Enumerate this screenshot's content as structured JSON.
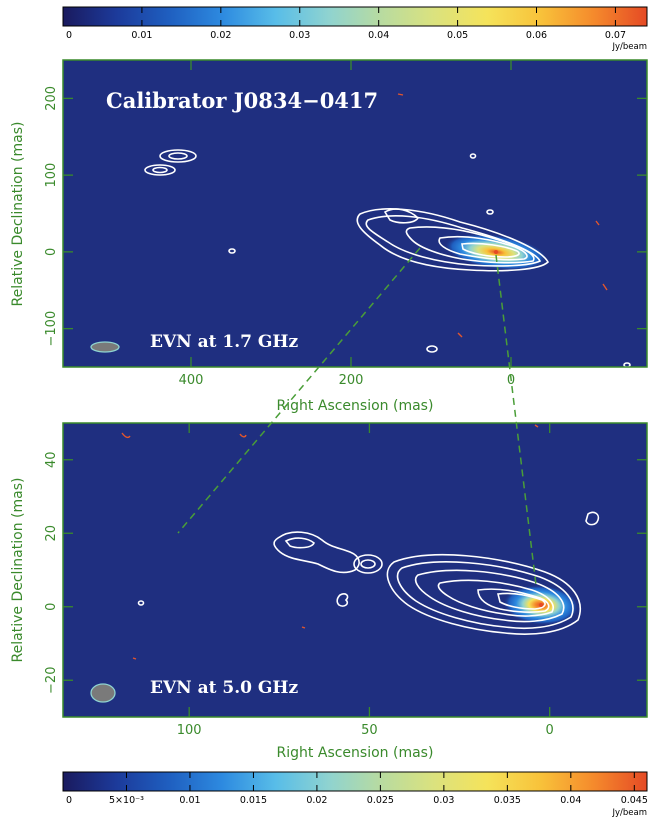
{
  "chart_data": [
    {
      "type": "heatmap",
      "title": "Calibrator J0834−0417",
      "annotation": "EVN at 1.7 GHz",
      "xlabel": "Right Ascension  (mas)",
      "ylabel": "Relative Declination  (mas)",
      "xlim": [
        560,
        -170
      ],
      "ylim": [
        -150,
        250
      ],
      "xticks": [
        "400",
        "200",
        "0"
      ],
      "xtick_values": [
        400,
        200,
        0
      ],
      "yticks": [
        "200",
        "100",
        "0",
        "−100"
      ],
      "ytick_values": [
        200,
        100,
        0,
        -100
      ],
      "peak": {
        "x": 0,
        "y": 0,
        "flux": 0.073
      },
      "beam": {
        "x": 515,
        "y": -125,
        "major_mas": 42,
        "minor_mas": 14
      },
      "colorbar": {
        "ticks": [
          "0",
          "0.01",
          "0.02",
          "0.03",
          "0.04",
          "0.05",
          "0.06",
          "0.07"
        ],
        "values": [
          0,
          0.01,
          0.02,
          0.03,
          0.04,
          0.05,
          0.06,
          0.07
        ],
        "range": [
          0,
          0.074
        ],
        "unit": "Jy/beam"
      }
    },
    {
      "type": "heatmap",
      "annotation": "EVN at 5.0 GHz",
      "xlabel": "Right Ascension  (mas)",
      "ylabel": "Relative Declination  (mas)",
      "xlim": [
        135,
        -27
      ],
      "ylim": [
        -30,
        50
      ],
      "xticks": [
        "100",
        "50",
        "0"
      ],
      "xtick_values": [
        100,
        50,
        0
      ],
      "yticks": [
        "40",
        "20",
        "0",
        "−20"
      ],
      "ytick_values": [
        40,
        20,
        0,
        -20
      ],
      "peak": {
        "x": 0,
        "y": 0,
        "flux": 0.046
      },
      "beam": {
        "x": 122,
        "y": -23,
        "major_mas": 6,
        "minor_mas": 4.5
      },
      "colorbar": {
        "ticks": [
          "0",
          "5×10⁻³",
          "0.01",
          "0.015",
          "0.02",
          "0.025",
          "0.03",
          "0.035",
          "0.04",
          "0.045"
        ],
        "values": [
          0,
          0.005,
          0.01,
          0.015,
          0.02,
          0.025,
          0.03,
          0.035,
          0.04,
          0.045
        ],
        "range": [
          0,
          0.046
        ],
        "unit": "Jy/beam"
      }
    }
  ],
  "colors": {
    "map_background": "#1f2f80",
    "axis_green": "#3a8a2c",
    "contour": "#ffffff",
    "negative_contour": "#e2562d",
    "connector": "#4a9e38",
    "colormap": [
      "#1a1a5e",
      "#1c3a9a",
      "#1f5fc0",
      "#2d8ae0",
      "#58bde8",
      "#8fd3d0",
      "#b8dba0",
      "#dbe27e",
      "#f5e35a",
      "#f8c23a",
      "#f58a2c",
      "#e54a25"
    ]
  }
}
